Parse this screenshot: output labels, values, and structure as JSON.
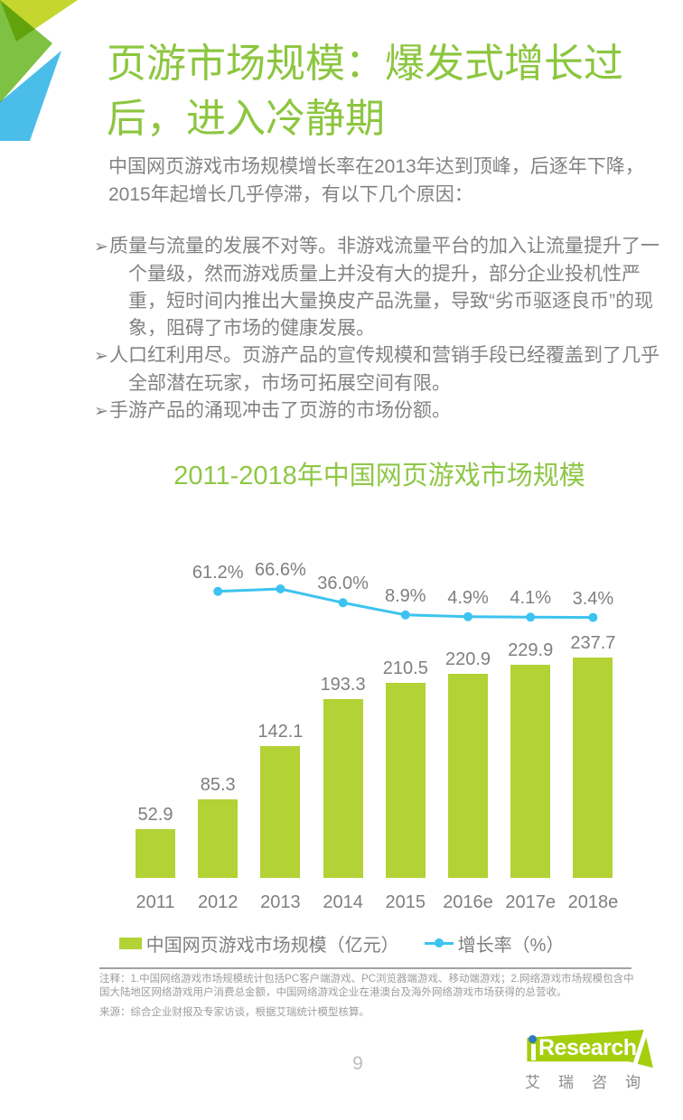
{
  "colors": {
    "accent_green": "#8cc63f",
    "bar_green": "#b2d235",
    "line_blue": "#3cc3ef",
    "logo_green": "#a5ce0c",
    "logo_dot_blue": "#2e7bbf",
    "body_gray": "#828282"
  },
  "header": {
    "title_lines": [
      "页游市场规模：爆发式增长过",
      "后，进入冷静期"
    ],
    "intro": "中国网页游戏市场规模增长率在2013年达到顶峰，后逐年下降，2015年起增长几乎停滞，有以下几个原因："
  },
  "bullets": {
    "marker": "➢",
    "items": [
      "质量与流量的发展不对等。非游戏流量平台的加入让流量提升了一个量级，然而游戏质量上并没有大的提升，部分企业投机性严重，短时间内推出大量换皮产品洗量，导致“劣币驱逐良币”的现象，阻碍了市场的健康发展。",
      "人口红利用尽。页游产品的宣传规模和营销手段已经覆盖到了几乎全部潜在玩家，市场可拓展空间有限。",
      "手游产品的涌现冲击了页游的市场份额。"
    ]
  },
  "chart_data": {
    "type": "bar",
    "title": "2011-2018年中国网页游戏市场规模",
    "categories": [
      "2011",
      "2012",
      "2013",
      "2014",
      "2015",
      "2016e",
      "2017e",
      "2018e"
    ],
    "series": [
      {
        "name": "中国网页游戏市场规模（亿元）",
        "type": "bar",
        "values": [
          52.9,
          85.3,
          142.1,
          193.3,
          210.5,
          220.9,
          229.9,
          237.7
        ],
        "labels": [
          "52.9",
          "85.3",
          "142.1",
          "193.3",
          "210.5",
          "220.9",
          "229.9",
          "237.7"
        ],
        "color": "#b2d235"
      },
      {
        "name": "增长率（%）",
        "type": "line",
        "values": [
          null,
          61.2,
          66.6,
          36.0,
          8.9,
          4.9,
          4.1,
          3.4
        ],
        "labels": [
          null,
          "61.2%",
          "66.6%",
          "36.0%",
          "8.9%",
          "4.9%",
          "4.1%",
          "3.4%"
        ],
        "color": "#3cc3ef"
      }
    ],
    "legend_position": "bottom",
    "grid": false,
    "value_axis_visible": false
  },
  "footer": {
    "note": "注释：1.中国网络游戏市场规模统计包括PC客户端游戏、PC浏览器端游戏、移动端游戏；2.网络游戏市场规模包含中国大陆地区网络游戏用户消费总金额，中国网络游戏企业在港澳台及海外网络游戏市场获得的总营收。",
    "source": "来源：综合企业财报及专家访谈，根据艾瑞统计模型核算。",
    "page_number": "9"
  },
  "logo": {
    "brand_i": "i",
    "brand_text": "Research",
    "caption": "艾瑞咨询"
  }
}
